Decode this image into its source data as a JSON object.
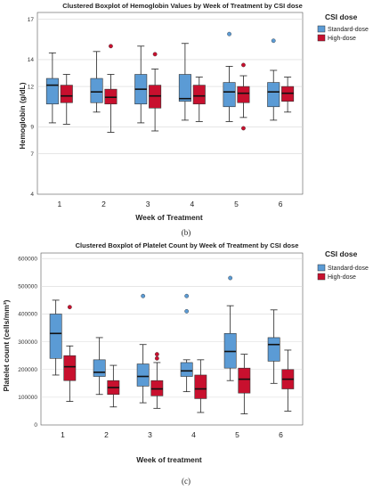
{
  "legend_title": "CSI dose",
  "colors": {
    "standard": "#5b9bd5",
    "high": "#c8102e",
    "grid": "#d8d8d8",
    "axis": "#555555"
  },
  "chart_data": [
    {
      "type": "boxplot",
      "title": "Clustered Boxplot of Hemoglobin Values by Week of Treatment by CSI dose",
      "xlabel": "Week of Treatment",
      "ylabel": "Hemoglobin (g/dL)",
      "ylim": [
        4,
        17.5
      ],
      "yticks": [
        4,
        7,
        9,
        12,
        14,
        17
      ],
      "categories": [
        "1",
        "2",
        "3",
        "4",
        "5",
        "6"
      ],
      "grid": true,
      "legend_position": "top-right",
      "caption": "(b)",
      "series": [
        {
          "name": "Standard-dose",
          "color": "#5b9bd5",
          "boxes": [
            {
              "min": 9.3,
              "q1": 10.7,
              "median": 12.1,
              "q3": 12.6,
              "max": 14.5,
              "outliers": []
            },
            {
              "min": 10.1,
              "q1": 10.8,
              "median": 11.6,
              "q3": 12.6,
              "max": 14.6,
              "outliers": []
            },
            {
              "min": 9.3,
              "q1": 10.7,
              "median": 11.8,
              "q3": 12.9,
              "max": 15.0,
              "outliers": []
            },
            {
              "min": 9.5,
              "q1": 10.9,
              "median": 11.1,
              "q3": 12.9,
              "max": 15.2,
              "outliers": []
            },
            {
              "min": 9.4,
              "q1": 10.5,
              "median": 11.6,
              "q3": 12.3,
              "max": 13.5,
              "outliers": [
                15.9
              ]
            },
            {
              "min": 9.5,
              "q1": 10.5,
              "median": 11.6,
              "q3": 12.3,
              "max": 13.2,
              "outliers": [
                15.4
              ]
            }
          ]
        },
        {
          "name": "High-dose",
          "color": "#c8102e",
          "boxes": [
            {
              "min": 9.2,
              "q1": 10.8,
              "median": 11.3,
              "q3": 12.1,
              "max": 12.9,
              "outliers": []
            },
            {
              "min": 8.6,
              "q1": 10.7,
              "median": 11.2,
              "q3": 11.8,
              "max": 12.9,
              "outliers": [
                15.0
              ]
            },
            {
              "min": 8.7,
              "q1": 10.4,
              "median": 11.3,
              "q3": 12.1,
              "max": 13.3,
              "outliers": [
                14.4
              ]
            },
            {
              "min": 9.4,
              "q1": 10.7,
              "median": 11.3,
              "q3": 12.1,
              "max": 12.7,
              "outliers": []
            },
            {
              "min": 9.7,
              "q1": 10.8,
              "median": 11.5,
              "q3": 12.0,
              "max": 12.8,
              "outliers": [
                13.6,
                8.9
              ]
            },
            {
              "min": 10.1,
              "q1": 10.9,
              "median": 11.5,
              "q3": 12.0,
              "max": 12.7,
              "outliers": []
            }
          ]
        }
      ]
    },
    {
      "type": "boxplot",
      "title": "Clustered Boxplot of Platelet Count by Week of Treatment by CSI dose",
      "xlabel": "Week of treatment",
      "ylabel": "Platelet count (cells/mm³)",
      "ylim": [
        0,
        620000
      ],
      "yticks": [
        0,
        100000,
        200000,
        300000,
        400000,
        500000,
        600000
      ],
      "categories": [
        "1",
        "2",
        "3",
        "4",
        "5",
        "6"
      ],
      "grid": true,
      "legend_position": "top-right",
      "caption": "(c)",
      "series": [
        {
          "name": "Standard-dose",
          "color": "#5b9bd5",
          "boxes": [
            {
              "min": 180000,
              "q1": 240000,
              "median": 330000,
              "q3": 400000,
              "max": 450000,
              "outliers": []
            },
            {
              "min": 110000,
              "q1": 175000,
              "median": 190000,
              "q3": 235000,
              "max": 315000,
              "outliers": []
            },
            {
              "min": 80000,
              "q1": 140000,
              "median": 175000,
              "q3": 220000,
              "max": 290000,
              "outliers": [
                465000
              ]
            },
            {
              "min": 120000,
              "q1": 175000,
              "median": 195000,
              "q3": 225000,
              "max": 235000,
              "outliers": [
                465000,
                410000
              ]
            },
            {
              "min": 160000,
              "q1": 205000,
              "median": 265000,
              "q3": 330000,
              "max": 430000,
              "outliers": [
                530000
              ]
            },
            {
              "min": 150000,
              "q1": 230000,
              "median": 290000,
              "q3": 315000,
              "max": 415000,
              "outliers": []
            }
          ]
        },
        {
          "name": "High-dose",
          "color": "#c8102e",
          "boxes": [
            {
              "min": 85000,
              "q1": 160000,
              "median": 210000,
              "q3": 250000,
              "max": 285000,
              "outliers": [
                425000
              ]
            },
            {
              "min": 65000,
              "q1": 110000,
              "median": 135000,
              "q3": 160000,
              "max": 215000,
              "outliers": []
            },
            {
              "min": 60000,
              "q1": 105000,
              "median": 130000,
              "q3": 160000,
              "max": 225000,
              "outliers": [
                255000,
                240000
              ]
            },
            {
              "min": 45000,
              "q1": 95000,
              "median": 130000,
              "q3": 180000,
              "max": 235000,
              "outliers": []
            },
            {
              "min": 40000,
              "q1": 115000,
              "median": 165000,
              "q3": 205000,
              "max": 255000,
              "outliers": []
            },
            {
              "min": 50000,
              "q1": 130000,
              "median": 165000,
              "q3": 200000,
              "max": 270000,
              "outliers": []
            }
          ]
        }
      ]
    }
  ]
}
